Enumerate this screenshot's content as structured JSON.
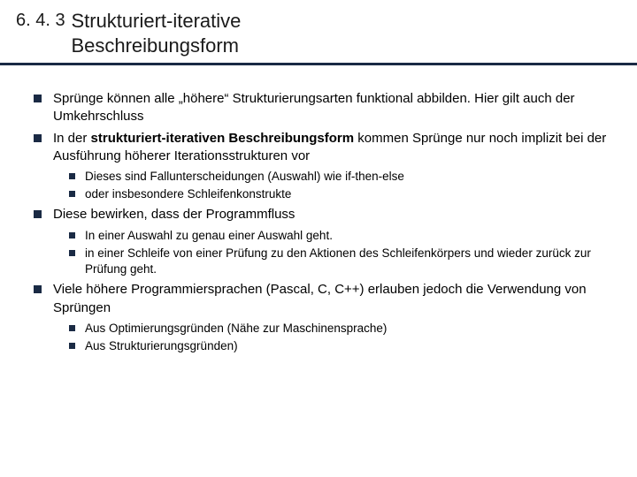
{
  "colors": {
    "rule": "#1a2a44",
    "bullet": "#1a2a44",
    "text": "#000000",
    "background": "#ffffff"
  },
  "typography": {
    "title_fontsize_pt": 16,
    "body_fontsize_pt": 11,
    "sub_fontsize_pt": 10,
    "font_family": "Arial"
  },
  "header": {
    "section_number": "6. 4. 3",
    "title_line1": "Strukturiert-iterative",
    "title_line2": "Beschreibungsform"
  },
  "bullets": [
    {
      "text_pre": "Sprünge können alle „höhere“ Strukturierungsarten funktional abbilden. Hier gilt auch der Umkehrschluss"
    },
    {
      "text_pre": "In der ",
      "bold": "strukturiert-iterativen Beschreibungsform",
      "text_post": " kommen Sprünge nur noch implizit bei der Ausführung höherer Iterationsstrukturen vor",
      "sub": [
        "Dieses sind Fallunterscheidungen (Auswahl) wie if-then-else",
        "oder insbesondere Schleifenkonstrukte"
      ]
    },
    {
      "text_pre": "Diese bewirken, dass der Programmfluss",
      "sub": [
        "In einer Auswahl zu genau einer Auswahl geht.",
        "in einer Schleife von einer Prüfung zu den Aktionen des Schleifenkörpers und wieder zurück zur Prüfung geht."
      ]
    },
    {
      "text_pre": "Viele höhere Programmiersprachen (Pascal, C, C++) erlauben jedoch die Verwendung von Sprüngen",
      "sub": [
        "Aus Optimierungsgründen (Nähe zur Maschinensprache)",
        "Aus Strukturierungsgründen)"
      ]
    }
  ]
}
